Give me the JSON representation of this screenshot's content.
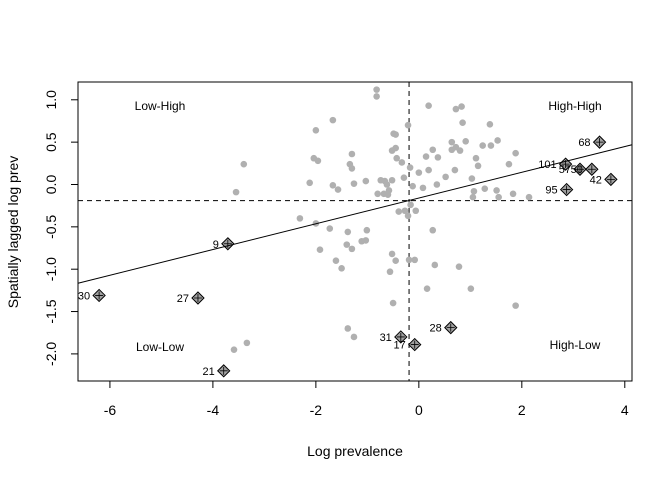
{
  "chart_data": {
    "type": "moran-scatter",
    "x_label": "Log prevalence",
    "y_label": "Spatially lagged log prev",
    "xlim": [
      -6.62,
      4.14
    ],
    "ylim": [
      -2.32,
      1.21
    ],
    "xticks": [
      -6,
      -4,
      -2,
      0,
      2,
      4
    ],
    "yticks": [
      {
        "value": 1,
        "label": "1.0"
      },
      0.5,
      {
        "value": 0,
        "label": "0.0"
      },
      -0.5,
      {
        "value": -1,
        "label": "-1.0"
      },
      -1.5,
      {
        "value": -2,
        "label": "-2.0"
      }
    ],
    "quadrant_labels": [
      "Low-High",
      "High-High",
      "Low-Low",
      "High-Low"
    ],
    "xmean": -0.19,
    "ymean": -0.19,
    "regression": {
      "intercept": -0.16,
      "slope": 0.152
    },
    "series": [
      {
        "name": "points",
        "color": "#b0b0b0",
        "x": [
          -0.82,
          -0.82,
          0.19,
          0.83,
          0.72,
          0.85,
          1.38,
          -1.67,
          -2.0,
          -0.21,
          -0.49,
          -0.45,
          0.64,
          0.91,
          0.27,
          -0.45,
          1.24,
          1.4,
          -1.3,
          -0.52,
          -3.4,
          -2.04,
          -1.96,
          -0.43,
          0.14,
          0.37,
          0.64,
          0.72,
          0.8,
          1.11,
          -1.34,
          -1.3,
          -0.33,
          -0.17,
          0.19,
          0.0,
          0.52,
          0.7,
          1.03,
          1.15,
          1.75,
          1.88,
          -0.74,
          -0.66,
          -0.62,
          -0.52,
          -0.29,
          -1.03,
          -1.26,
          -1.67,
          -2.12,
          -3.55,
          -1.57,
          -0.8,
          -0.68,
          -0.58,
          -0.6,
          -0.12,
          0.08,
          0.35,
          1.07,
          1.28,
          1.51,
          1.05,
          1.55,
          1.83,
          2.14,
          -0.16,
          -0.27,
          -0.39,
          -0.21,
          -0.06,
          -2.31,
          -2.0,
          -1.73,
          -1.01,
          -1.38,
          0.27,
          -1.92,
          -1.4,
          -1.3,
          -1.11,
          -1.03,
          -1.61,
          -0.52,
          -0.45,
          -0.19,
          -0.08,
          0.31,
          -1.5,
          0.78,
          -0.56,
          0.16,
          1.01,
          -0.5,
          1.88,
          -1.38,
          -1.26,
          -3.34,
          -3.59,
          1.53
        ],
        "values": [
          1.12,
          1.04,
          0.93,
          0.92,
          0.89,
          0.73,
          0.71,
          0.76,
          0.64,
          0.7,
          0.6,
          0.59,
          0.5,
          0.51,
          0.41,
          0.43,
          0.46,
          0.46,
          0.36,
          0.4,
          0.24,
          0.31,
          0.28,
          0.31,
          0.33,
          0.32,
          0.41,
          0.44,
          0.4,
          0.31,
          0.24,
          0.19,
          0.26,
          0.2,
          0.17,
          0.14,
          0.09,
          0.17,
          0.07,
          0.22,
          0.24,
          0.37,
          0.05,
          0.04,
          0.0,
          0.05,
          0.08,
          0.04,
          0.01,
          -0.01,
          0.02,
          -0.09,
          -0.06,
          -0.11,
          -0.11,
          -0.07,
          -0.12,
          -0.02,
          -0.04,
          0.0,
          -0.08,
          -0.05,
          -0.07,
          -0.15,
          -0.15,
          -0.11,
          -0.15,
          -0.24,
          -0.31,
          -0.32,
          -0.37,
          -0.31,
          -0.4,
          -0.46,
          -0.52,
          -0.54,
          -0.56,
          -0.54,
          -0.77,
          -0.71,
          -0.76,
          -0.67,
          -0.66,
          -0.9,
          -0.82,
          -0.9,
          -0.89,
          -0.89,
          -0.95,
          -0.99,
          -0.97,
          -1.03,
          -1.23,
          -1.23,
          -1.4,
          -1.43,
          -1.7,
          -1.8,
          -1.87,
          -1.95,
          0.52
        ]
      },
      {
        "name": "influential",
        "color": "#a0a0a0",
        "labels": [
          "68",
          "101",
          "57",
          "50",
          "42",
          "95",
          "9",
          "30",
          "27",
          "31",
          "17",
          "28",
          "21"
        ],
        "x": [
          3.51,
          2.85,
          3.13,
          3.36,
          3.73,
          2.87,
          -3.71,
          -6.21,
          -4.29,
          -0.35,
          -0.08,
          0.62,
          -3.79
        ],
        "values": [
          0.5,
          0.24,
          0.18,
          0.18,
          0.06,
          -0.06,
          -0.7,
          -1.31,
          -1.34,
          -1.8,
          -1.89,
          -1.69,
          -2.2
        ]
      }
    ]
  }
}
